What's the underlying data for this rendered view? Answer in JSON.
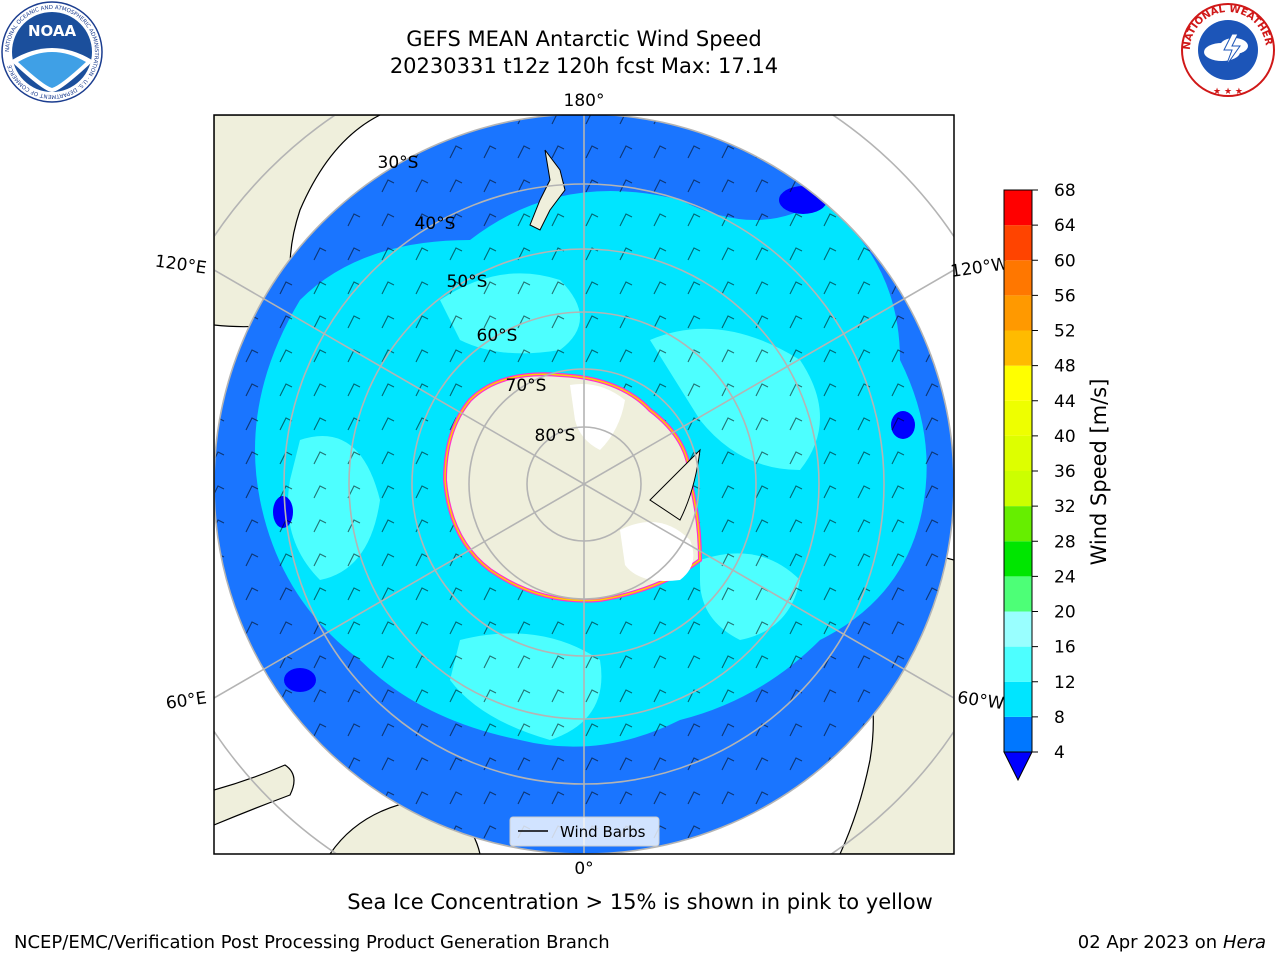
{
  "header": {
    "title": "GEFS MEAN Antarctic Wind Speed",
    "subtitle": "20230331 t12z 120h fcst   Max: 17.14"
  },
  "logos": {
    "left": "NOAA",
    "left_ring": "NATIONAL OCEANIC AND ATMOSPHERIC ADMINISTRATION · U.S. DEPARTMENT OF COMMERCE",
    "right_ring": "NATIONAL WEATHER SERVICE"
  },
  "map": {
    "projection": "south-polar-stereographic",
    "longitude_labels": [
      "180°",
      "120°E",
      "120°W",
      "60°E",
      "60°W",
      "0°"
    ],
    "latitude_labels": [
      "30°S",
      "40°S",
      "50°S",
      "60°S",
      "70°S",
      "80°S"
    ],
    "legend_label": "Wind Barbs",
    "colors": {
      "ocean_background": "#1a75ff",
      "land": "#efefdc",
      "ice_shelf": "#ffffff",
      "grid": "#b4b4b4",
      "sea_ice_edge": [
        "#ff33cc",
        "#ffcc00"
      ]
    }
  },
  "colorbar": {
    "label": "Wind Speed [m/s]",
    "ticks": [
      "4",
      "8",
      "12",
      "16",
      "20",
      "24",
      "28",
      "32",
      "36",
      "40",
      "44",
      "48",
      "52",
      "56",
      "60",
      "64",
      "68"
    ],
    "bins": [
      {
        "from": 4,
        "to": 8,
        "color": "#0077ff"
      },
      {
        "from": 8,
        "to": 12,
        "color": "#00e5ff"
      },
      {
        "from": 12,
        "to": 16,
        "color": "#4dffff"
      },
      {
        "from": 16,
        "to": 20,
        "color": "#99ffff"
      },
      {
        "from": 20,
        "to": 24,
        "color": "#4dff77"
      },
      {
        "from": 24,
        "to": 28,
        "color": "#00e600"
      },
      {
        "from": 28,
        "to": 32,
        "color": "#66ee00"
      },
      {
        "from": 32,
        "to": 36,
        "color": "#ccff00"
      },
      {
        "from": 36,
        "to": 40,
        "color": "#ddff00"
      },
      {
        "from": 40,
        "to": 44,
        "color": "#eeff00"
      },
      {
        "from": 44,
        "to": 48,
        "color": "#ffff00"
      },
      {
        "from": 48,
        "to": 52,
        "color": "#ffbb00"
      },
      {
        "from": 52,
        "to": 56,
        "color": "#ff9900"
      },
      {
        "from": 56,
        "to": 60,
        "color": "#ff7700"
      },
      {
        "from": 60,
        "to": 64,
        "color": "#ff4400"
      },
      {
        "from": 64,
        "to": 68,
        "color": "#ff0000"
      }
    ],
    "extend_below_color": "#0000ff"
  },
  "caption": "Sea Ice Concentration > 15% is shown in pink to yellow",
  "footer": {
    "left": "NCEP/EMC/Verification Post Processing Product Generation Branch",
    "right_date": "02 Apr 2023 on",
    "right_host": "Hera"
  }
}
